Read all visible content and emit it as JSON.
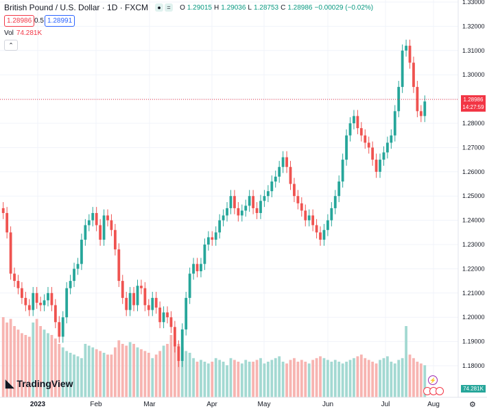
{
  "header": {
    "title": "British Pound / U.S. Dollar · 1D · FXCM",
    "o_label": "O",
    "o_value": "1.29015",
    "h_label": "H",
    "h_value": "1.29036",
    "l_label": "L",
    "l_value": "1.28753",
    "c_label": "C",
    "c_value": "1.28986",
    "change": "−0.00029 (−0.02%)"
  },
  "trade": {
    "sell": "1.28986",
    "spread": "0.5",
    "buy": "1.28991"
  },
  "volume": {
    "label": "Vol",
    "value": "74.281K"
  },
  "price_scale": {
    "ticks": [
      "1.33000",
      "1.32000",
      "1.31000",
      "1.30000",
      "1.29000",
      "1.28000",
      "1.27000",
      "1.26000",
      "1.25000",
      "1.24000",
      "1.23000",
      "1.22000",
      "1.21000",
      "1.20000",
      "1.19000",
      "1.18000"
    ],
    "last_price": "1.28986",
    "countdown": "14:27:59",
    "volume_label": "74.281K"
  },
  "time_scale": {
    "labels": [
      "2023",
      "Feb",
      "Mar",
      "Apr",
      "May",
      "Jun",
      "Jul",
      "Aug"
    ]
  },
  "brand": {
    "name": "TradingView"
  },
  "colors": {
    "up": "#26a69a",
    "down": "#ef5350",
    "vol_up": "#a3d9d2",
    "vol_down": "#f7b4b1",
    "grid": "#f0f3fa"
  },
  "chart_data": {
    "type": "candlestick",
    "ylim": [
      1.175,
      1.33
    ],
    "xlabels": [
      "2023",
      "Feb",
      "Mar",
      "Apr",
      "May",
      "Jun",
      "Jul",
      "Aug"
    ],
    "closes": [
      1.243,
      1.235,
      1.218,
      1.215,
      1.212,
      1.208,
      1.205,
      1.203,
      1.21,
      1.206,
      1.205,
      1.207,
      1.21,
      1.205,
      1.198,
      1.192,
      1.2,
      1.212,
      1.215,
      1.22,
      1.222,
      1.232,
      1.238,
      1.24,
      1.243,
      1.238,
      1.232,
      1.242,
      1.24,
      1.236,
      1.228,
      1.215,
      1.208,
      1.203,
      1.21,
      1.205,
      1.213,
      1.212,
      1.205,
      1.203,
      1.208,
      1.204,
      1.198,
      1.202,
      1.2,
      1.196,
      1.188,
      1.182,
      1.195,
      1.208,
      1.218,
      1.222,
      1.219,
      1.222,
      1.23,
      1.233,
      1.232,
      1.235,
      1.24,
      1.242,
      1.245,
      1.25,
      1.245,
      1.242,
      1.244,
      1.246,
      1.25,
      1.245,
      1.243,
      1.248,
      1.25,
      1.252,
      1.256,
      1.258,
      1.262,
      1.266,
      1.262,
      1.255,
      1.25,
      1.247,
      1.244,
      1.24,
      1.242,
      1.238,
      1.235,
      1.232,
      1.236,
      1.24,
      1.245,
      1.25,
      1.256,
      1.265,
      1.275,
      1.28,
      1.283,
      1.278,
      1.275,
      1.272,
      1.27,
      1.265,
      1.26,
      1.265,
      1.268,
      1.272,
      1.275,
      1.285,
      1.295,
      1.31,
      1.312,
      1.305,
      1.295,
      1.285,
      1.283,
      1.289
    ],
    "volumes": [
      45,
      42,
      44,
      40,
      38,
      36,
      35,
      34,
      42,
      44,
      40,
      38,
      36,
      35,
      33,
      30,
      28,
      26,
      25,
      24,
      23,
      22,
      30,
      29,
      28,
      27,
      26,
      25,
      24,
      24,
      28,
      32,
      30,
      29,
      31,
      30,
      28,
      27,
      26,
      25,
      22,
      24,
      26,
      29,
      30,
      35,
      32,
      30,
      28,
      26,
      25,
      22,
      20,
      21,
      20,
      19,
      20,
      22,
      21,
      20,
      18,
      22,
      21,
      20,
      19,
      21,
      20,
      20,
      21,
      22,
      19,
      20,
      21,
      22,
      23,
      20,
      19,
      21,
      22,
      20,
      21,
      20,
      19,
      21,
      22,
      23,
      22,
      21,
      20,
      21,
      20,
      19,
      20,
      21,
      22,
      23,
      24,
      22,
      21,
      20,
      19,
      21,
      22,
      23,
      20,
      19,
      21,
      22,
      40,
      24,
      22,
      20,
      19,
      18
    ]
  }
}
